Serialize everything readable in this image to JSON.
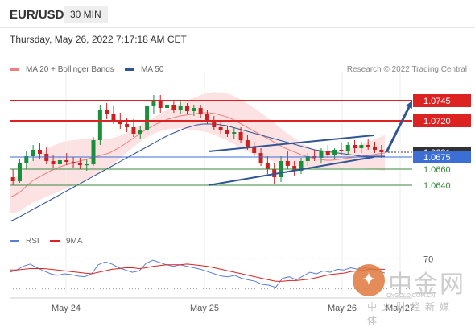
{
  "header": {
    "symbol": "EUR/USD",
    "timeframe": "30 MIN",
    "datetime": "Thursday, May 26, 2022 7:17:18 AM CET"
  },
  "legend": {
    "ma20": "MA 20 + Bollinger Bands",
    "ma50": "MA 50",
    "ma20_color": "#f08080",
    "ma50_color": "#2f5597",
    "copyright": "Research © 2022 Trading Central"
  },
  "rsi_legend": {
    "rsi": "RSI",
    "ma9": "9MA",
    "rsi_color": "#5b7fd6",
    "ma9_color": "#dd2222"
  },
  "watermark": {
    "cn": "中金网",
    "url": "CNGOLD.COM.CN",
    "sub": "中文财经新媒体"
  },
  "chart_data": [
    {
      "type": "candlestick",
      "instrument": "EUR/USD",
      "timeframe": "30 MIN",
      "x_tick_labels": [
        "May 24",
        "May 25",
        "May 26",
        "May 27"
      ],
      "ylim": [
        1.059,
        1.0775
      ],
      "levels": [
        {
          "value": 1.0745,
          "label": "1.0745",
          "style": "resistance",
          "color": "#dd2222"
        },
        {
          "value": 1.072,
          "label": "1.0720",
          "style": "resistance",
          "color": "#dd2222"
        },
        {
          "value": 1.0681,
          "label": "1.0681",
          "style": "last-price",
          "color": "#333333"
        },
        {
          "value": 1.0675,
          "label": "1.0675",
          "style": "pivot",
          "color": "#3b6fd6"
        },
        {
          "value": 1.066,
          "label": "1.0660",
          "style": "support",
          "color": "#3a8a3a"
        },
        {
          "value": 1.064,
          "label": "1.0640",
          "style": "support",
          "color": "#3a8a3a"
        }
      ],
      "series": [
        {
          "kind": "ma20",
          "color": "#f08080",
          "values": [
            1.0625,
            1.0628,
            1.0633,
            1.064,
            1.0646,
            1.065,
            1.0654,
            1.0658,
            1.0661,
            1.0664,
            1.0666,
            1.0668,
            1.067,
            1.0672,
            1.0674,
            1.0676,
            1.0678,
            1.068,
            1.0684,
            1.0688,
            1.0693,
            1.0698,
            1.0703,
            1.0708,
            1.0712,
            1.0716,
            1.0719,
            1.0722,
            1.0724,
            1.0726,
            1.0727,
            1.0728,
            1.0729,
            1.073,
            1.073,
            1.0729,
            1.0727,
            1.0725,
            1.0722,
            1.0718,
            1.0714,
            1.071,
            1.0706,
            1.0702,
            1.0698,
            1.0694,
            1.069,
            1.0686,
            1.0683,
            1.068,
            1.0677,
            1.0675,
            1.0673,
            1.0672,
            1.0671,
            1.0671,
            1.0672,
            1.0673,
            1.0674,
            1.0675,
            1.0676,
            1.0677,
            1.0678,
            1.0679,
            1.068
          ]
        },
        {
          "kind": "ma50",
          "color": "#2f5597",
          "values": [
            1.0595,
            1.0598,
            1.0602,
            1.0606,
            1.061,
            1.0614,
            1.0618,
            1.0622,
            1.0626,
            1.063,
            1.0634,
            1.0638,
            1.0642,
            1.0646,
            1.065,
            1.0654,
            1.0658,
            1.0662,
            1.0666,
            1.067,
            1.0674,
            1.0678,
            1.0682,
            1.0686,
            1.069,
            1.0694,
            1.0698,
            1.0702,
            1.0705,
            1.0708,
            1.0711,
            1.0713,
            1.0715,
            1.0716,
            1.0716,
            1.0716,
            1.0715,
            1.0714,
            1.0712,
            1.071,
            1.0708,
            1.0706,
            1.0704,
            1.0702,
            1.07,
            1.0698,
            1.0696,
            1.0694,
            1.0692,
            1.069,
            1.0688,
            1.0686,
            1.0684,
            1.0683,
            1.0682,
            1.0681,
            1.068,
            1.0679,
            1.0678,
            1.0677,
            1.0676,
            1.0676,
            1.0676,
            1.0676,
            1.0676
          ]
        }
      ],
      "candles": [
        [
          1.065,
          1.066,
          1.064,
          1.0645
        ],
        [
          1.0645,
          1.0672,
          1.0643,
          1.0668
        ],
        [
          1.0668,
          1.0682,
          1.066,
          1.0676
        ],
        [
          1.0676,
          1.069,
          1.067,
          1.0684
        ],
        [
          1.0684,
          1.0692,
          1.0672,
          1.0679
        ],
        [
          1.0679,
          1.0688,
          1.0666,
          1.067
        ],
        [
          1.067,
          1.0678,
          1.0662,
          1.0666
        ],
        [
          1.0666,
          1.0676,
          1.066,
          1.0671
        ],
        [
          1.0671,
          1.068,
          1.0665,
          1.0669
        ],
        [
          1.0669,
          1.0675,
          1.0662,
          1.0668
        ],
        [
          1.0668,
          1.0674,
          1.066,
          1.0665
        ],
        [
          1.0665,
          1.0672,
          1.0658,
          1.0666
        ],
        [
          1.0666,
          1.07,
          1.0664,
          1.0696
        ],
        [
          1.0696,
          1.074,
          1.069,
          1.0734
        ],
        [
          1.0734,
          1.0742,
          1.0722,
          1.0728
        ],
        [
          1.0728,
          1.0738,
          1.0716,
          1.072
        ],
        [
          1.072,
          1.073,
          1.071,
          1.0716
        ],
        [
          1.0716,
          1.0724,
          1.0706,
          1.0712
        ],
        [
          1.0712,
          1.0722,
          1.07,
          1.0704
        ],
        [
          1.0704,
          1.0714,
          1.0698,
          1.0708
        ],
        [
          1.0708,
          1.0742,
          1.0704,
          1.0738
        ],
        [
          1.0738,
          1.0752,
          1.0728,
          1.0746
        ],
        [
          1.0746,
          1.0752,
          1.073,
          1.0736
        ],
        [
          1.0736,
          1.0746,
          1.0728,
          1.074
        ],
        [
          1.074,
          1.0746,
          1.073,
          1.0734
        ],
        [
          1.0734,
          1.0744,
          1.0728,
          1.0738
        ],
        [
          1.0738,
          1.0742,
          1.0728,
          1.0732
        ],
        [
          1.0732,
          1.074,
          1.0726,
          1.0736
        ],
        [
          1.0736,
          1.074,
          1.0724,
          1.0728
        ],
        [
          1.0728,
          1.0734,
          1.0716,
          1.072
        ],
        [
          1.072,
          1.0726,
          1.0708,
          1.0712
        ],
        [
          1.0712,
          1.0718,
          1.0704,
          1.0708
        ],
        [
          1.0708,
          1.0714,
          1.07,
          1.0704
        ],
        [
          1.0704,
          1.0712,
          1.0698,
          1.0706
        ],
        [
          1.0706,
          1.0712,
          1.0692,
          1.0696
        ],
        [
          1.0696,
          1.0702,
          1.0684,
          1.0688
        ],
        [
          1.0688,
          1.0694,
          1.0676,
          1.068
        ],
        [
          1.068,
          1.0686,
          1.0664,
          1.0668
        ],
        [
          1.0668,
          1.0676,
          1.0654,
          1.066
        ],
        [
          1.066,
          1.0668,
          1.0642,
          1.065
        ],
        [
          1.065,
          1.0676,
          1.0644,
          1.067
        ],
        [
          1.067,
          1.0682,
          1.066,
          1.0664
        ],
        [
          1.0664,
          1.067,
          1.0652,
          1.0658
        ],
        [
          1.0658,
          1.0674,
          1.0654,
          1.067
        ],
        [
          1.067,
          1.068,
          1.0664,
          1.0676
        ],
        [
          1.0676,
          1.0684,
          1.067,
          1.0674
        ],
        [
          1.0674,
          1.0686,
          1.0668,
          1.0682
        ],
        [
          1.0682,
          1.069,
          1.0674,
          1.0678
        ],
        [
          1.0678,
          1.0686,
          1.0672,
          1.0684
        ],
        [
          1.0684,
          1.0692,
          1.0678,
          1.0682
        ],
        [
          1.0682,
          1.0694,
          1.0678,
          1.069
        ],
        [
          1.069,
          1.0696,
          1.068,
          1.0686
        ],
        [
          1.0686,
          1.0694,
          1.068,
          1.069
        ],
        [
          1.069,
          1.0698,
          1.0684,
          1.0688
        ],
        [
          1.0688,
          1.0694,
          1.068,
          1.0684
        ],
        [
          1.0684,
          1.069,
          1.0674,
          1.0681
        ]
      ],
      "channel": {
        "lower": [
          [
            1.064,
            0.53
          ],
          [
            1.0675,
            0.97
          ]
        ],
        "upper": [
          [
            1.0682,
            0.53
          ],
          [
            1.0702,
            0.97
          ]
        ]
      },
      "projection_arrow": {
        "from": 1.0681,
        "to": 1.0745
      }
    },
    {
      "type": "line",
      "name": "RSI",
      "ylim": [
        20,
        80
      ],
      "reference_lines": [
        70,
        30
      ],
      "tick_labels": [
        "70"
      ],
      "series": [
        {
          "name": "RSI",
          "color": "#5b7fd6",
          "values": [
            52,
            55,
            60,
            63,
            58,
            54,
            50,
            48,
            50,
            49,
            47,
            46,
            50,
            62,
            66,
            63,
            58,
            55,
            52,
            54,
            64,
            68,
            65,
            62,
            60,
            62,
            60,
            58,
            56,
            53,
            50,
            47,
            46,
            48,
            44,
            42,
            40,
            36,
            35,
            32,
            44,
            46,
            42,
            47,
            52,
            50,
            54,
            52,
            56,
            55,
            58,
            56,
            58,
            57,
            54,
            51
          ]
        },
        {
          "name": "9MA",
          "color": "#dd2222",
          "values": [
            55,
            55,
            56,
            57,
            57,
            57,
            56,
            55,
            54,
            53,
            52,
            51,
            50,
            52,
            54,
            56,
            57,
            58,
            58,
            57,
            58,
            60,
            61,
            62,
            62,
            62,
            63,
            62,
            61,
            60,
            58,
            56,
            54,
            52,
            50,
            48,
            46,
            44,
            42,
            40,
            40,
            41,
            41,
            42,
            43,
            45,
            47,
            49,
            50,
            51,
            53,
            54,
            55,
            56,
            56,
            56
          ]
        }
      ]
    }
  ]
}
